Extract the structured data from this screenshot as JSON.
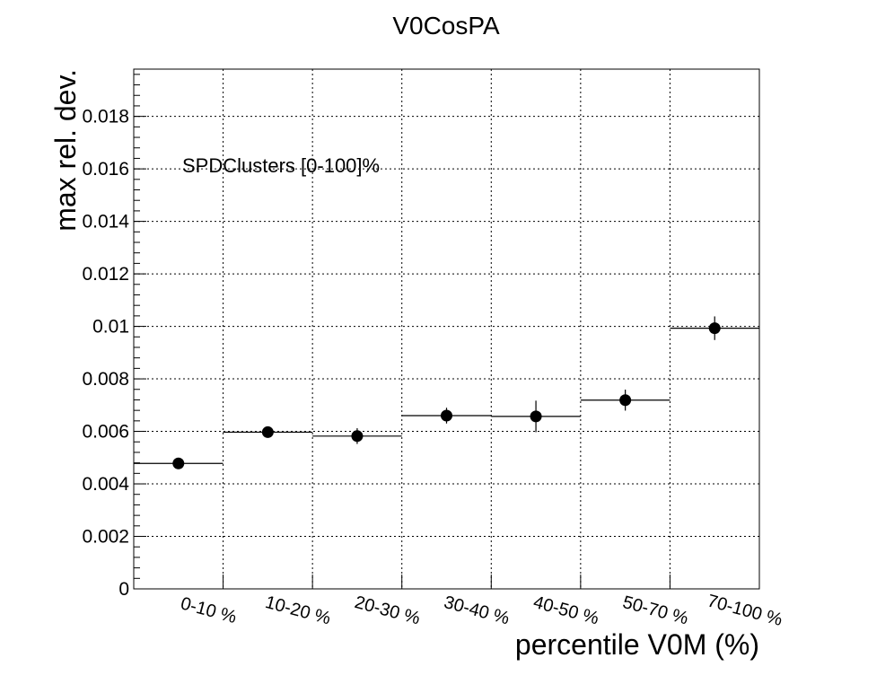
{
  "chart_data": {
    "type": "scatter",
    "title": "V0CosPA",
    "xlabel": "percentile V0M (%)",
    "ylabel": "max rel. dev.",
    "annotation": "SPDClusters [0-100]%",
    "categories": [
      "0-10 %",
      "10-20 %",
      "20-30 %",
      "30-40 %",
      "40-50 %",
      "50-70 %",
      "70-100 %"
    ],
    "series": [
      {
        "values": [
          0.00478,
          0.00597,
          0.00582,
          0.0066,
          0.00657,
          0.00719,
          0.00993
        ],
        "errors": [
          0.0001,
          0.0001,
          0.0003,
          0.0003,
          0.0006,
          0.0004,
          0.00045
        ]
      }
    ],
    "ylim": [
      0,
      0.0198
    ],
    "yticks": [
      "0",
      "0.002",
      "0.004",
      "0.006",
      "0.008",
      "0.01",
      "0.012",
      "0.014",
      "0.016",
      "0.018"
    ],
    "ytick_values": [
      0,
      0.002,
      0.004,
      0.006,
      0.008,
      0.01,
      0.012,
      0.014,
      0.016,
      0.018
    ],
    "grid": true,
    "marker_color": "#000000"
  }
}
